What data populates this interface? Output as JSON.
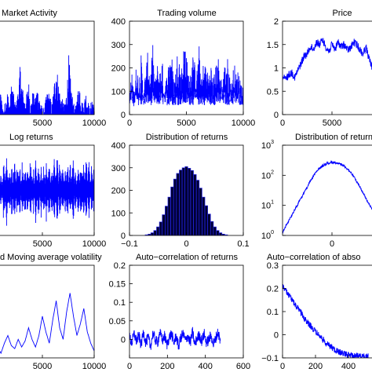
{
  "figure_bg": "#ffffff",
  "line_color": "#0000ff",
  "chart_data": [
    {
      "id": "market-activity",
      "type": "line",
      "title": "Market Activity",
      "xlim": [
        0,
        10000
      ],
      "x_ticks": [
        "5000",
        "10000"
      ],
      "y_ticks": [],
      "series": [
        {
          "values": [
            2,
            3,
            5,
            4,
            8,
            6,
            3,
            5,
            7,
            4,
            9,
            6,
            4,
            7,
            12,
            8,
            5,
            6,
            9,
            4,
            7,
            5,
            8,
            6,
            4,
            3,
            5,
            7,
            6,
            4,
            8,
            13,
            9,
            6,
            5,
            4,
            7,
            14,
            8,
            5,
            3,
            6,
            9,
            5,
            4,
            7,
            5,
            3,
            6,
            4
          ]
        }
      ]
    },
    {
      "id": "trading-volume",
      "type": "line",
      "title": "Trading volume",
      "xlim": [
        0,
        10000
      ],
      "ylim": [
        0,
        400
      ],
      "x_ticks": [
        "0",
        "5000",
        "10000"
      ],
      "y_ticks": [
        "0",
        "100",
        "200",
        "300",
        "400"
      ],
      "series": [
        {
          "values": [
            120,
            180,
            90,
            230,
            150,
            260,
            110,
            200,
            280,
            160,
            310,
            140,
            220,
            190,
            250,
            130,
            170,
            240,
            290,
            150,
            200,
            330,
            180,
            260,
            350,
            210,
            160,
            280,
            230,
            190,
            300,
            140,
            250,
            210,
            170,
            230,
            160,
            200,
            270,
            180,
            150,
            220,
            260,
            190,
            140,
            230,
            170,
            200,
            150,
            110
          ]
        }
      ]
    },
    {
      "id": "price",
      "type": "line",
      "title": "Price",
      "xlim": [
        0,
        10000
      ],
      "ylim": [
        0,
        2
      ],
      "x_ticks": [
        "0",
        "5000"
      ],
      "y_ticks": [
        "0",
        "0.5",
        "1",
        "1.5",
        "2"
      ],
      "series": [
        {
          "values": [
            0.8,
            0.75,
            0.85,
            0.9,
            0.8,
            0.95,
            1.1,
            1.25,
            1.3,
            1.45,
            1.4,
            1.55,
            1.5,
            1.6,
            1.45,
            1.35,
            1.5,
            1.4,
            1.55,
            1.45,
            1.5,
            1.38,
            1.42,
            1.55,
            1.5,
            1.4,
            1.3,
            1.45,
            1.2,
            1.0,
            0.9,
            1.05,
            1.1
          ]
        }
      ]
    },
    {
      "id": "log-returns",
      "type": "line",
      "title": "Log returns",
      "xlim": [
        0,
        10000
      ],
      "x_ticks": [
        "5000",
        "10000"
      ],
      "y_ticks": [],
      "series": [
        {
          "values": [
            0.0,
            0.35,
            -0.4,
            0.5,
            -0.3,
            0.45,
            -0.55,
            0.3,
            -0.35,
            0.6,
            -0.45,
            0.4,
            -0.5,
            0.35,
            -0.4,
            0.55,
            -0.3,
            0.45,
            -0.6,
            0.4,
            -0.35,
            0.5,
            -0.45,
            0.3,
            -0.55,
            0.75,
            -0.5,
            0.4,
            -0.35,
            0.45,
            -0.4,
            0.55,
            -0.3,
            0.4,
            -0.45,
            0.35,
            -0.5,
            0.45,
            -0.35,
            0.4
          ]
        }
      ]
    },
    {
      "id": "distribution-of-returns",
      "type": "bar",
      "title": "Distribution of  returns",
      "xlim": [
        -0.1,
        0.1
      ],
      "ylim": [
        0,
        400
      ],
      "x_ticks": [
        "−0.1",
        "0",
        "0.1"
      ],
      "y_ticks": [
        "0",
        "100",
        "200",
        "300",
        "400"
      ],
      "x": [
        -0.07,
        -0.065,
        -0.06,
        -0.055,
        -0.05,
        -0.045,
        -0.04,
        -0.035,
        -0.03,
        -0.025,
        -0.02,
        -0.015,
        -0.01,
        -0.005,
        0.0,
        0.005,
        0.01,
        0.015,
        0.02,
        0.025,
        0.03,
        0.035,
        0.04,
        0.045,
        0.05,
        0.055,
        0.06,
        0.065,
        0.07
      ],
      "values": [
        3,
        6,
        12,
        22,
        38,
        60,
        92,
        130,
        170,
        215,
        250,
        275,
        290,
        300,
        305,
        298,
        288,
        270,
        245,
        210,
        170,
        132,
        95,
        62,
        38,
        22,
        12,
        6,
        3
      ]
    },
    {
      "id": "returns-distribution-log",
      "type": "line",
      "title": "Distribution of  returns",
      "xlim": [
        -0.1,
        0.1
      ],
      "yscale": "log",
      "ylim": [
        1,
        1000
      ],
      "x_ticks": [
        "0"
      ],
      "y_ticks": [
        "10",
        "10",
        "10",
        "10"
      ],
      "y_tick_exponents": [
        "0",
        "1",
        "2",
        "3"
      ],
      "series": [
        {
          "values": [
            1.2,
            2.5,
            5,
            10,
            20,
            40,
            80,
            140,
            200,
            250,
            270,
            260,
            230,
            170,
            110,
            60,
            30,
            15,
            8,
            4,
            2
          ]
        }
      ]
    },
    {
      "id": "moving-average-volatility",
      "type": "line",
      "title": "d Moving average volatility",
      "xlim": [
        0,
        10000
      ],
      "x_ticks": [
        "5000",
        "10000"
      ],
      "y_ticks": [],
      "series": [
        {
          "values": [
            0.15,
            0.3,
            0.2,
            0.12,
            0.25,
            0.35,
            0.22,
            0.18,
            0.3,
            0.2,
            0.28,
            0.45,
            0.3,
            0.2,
            0.35,
            0.6,
            0.4,
            0.25,
            0.55,
            0.8,
            0.45,
            0.3,
            0.65,
            0.9,
            0.6,
            0.35,
            0.5,
            0.7,
            0.4,
            0.25,
            0.15
          ]
        }
      ]
    },
    {
      "id": "auto-correlation-returns",
      "type": "line",
      "title": "Auto−correlation  of  returns",
      "xlim": [
        0,
        600
      ],
      "ylim": [
        -0.05,
        0.2
      ],
      "x_ticks": [
        "0",
        "200",
        "400",
        "600"
      ],
      "y_ticks": [
        "0",
        "0.05",
        "0.1",
        "0.15",
        "0.2"
      ],
      "series": [
        {
          "values": [
            0.005,
            -0.01,
            0.015,
            -0.005,
            0.01,
            -0.015,
            0.02,
            -0.01,
            0.005,
            -0.02,
            0.015,
            0.0,
            -0.01,
            0.02,
            -0.005,
            0.01,
            -0.015,
            0.005,
            0.015,
            -0.01,
            0.01,
            -0.02,
            0.005,
            0.015,
            -0.005,
            0.01,
            -0.01,
            0.02,
            -0.015,
            0.005,
            0.01,
            -0.005,
            0.015,
            -0.01,
            0.0,
            0.01,
            -0.015,
            0.005,
            0.02,
            -0.01
          ]
        }
      ]
    },
    {
      "id": "auto-correlation-absolute-returns",
      "type": "line",
      "title": "Auto−correlation  of  abso",
      "xlim": [
        0,
        600
      ],
      "ylim": [
        -0.1,
        0.3
      ],
      "x_ticks": [
        "0",
        "200",
        "400"
      ],
      "y_ticks": [
        "−0.1",
        "0",
        "0.1",
        "0.2",
        "0.3"
      ],
      "series": [
        {
          "values": [
            0.21,
            0.19,
            0.17,
            0.15,
            0.13,
            0.11,
            0.09,
            0.07,
            0.05,
            0.035,
            0.02,
            0.005,
            -0.01,
            -0.025,
            -0.04,
            -0.05,
            -0.06,
            -0.07,
            -0.075,
            -0.08,
            -0.085,
            -0.088,
            -0.09,
            -0.092,
            -0.09,
            -0.092,
            -0.095,
            -0.093
          ]
        }
      ]
    }
  ]
}
